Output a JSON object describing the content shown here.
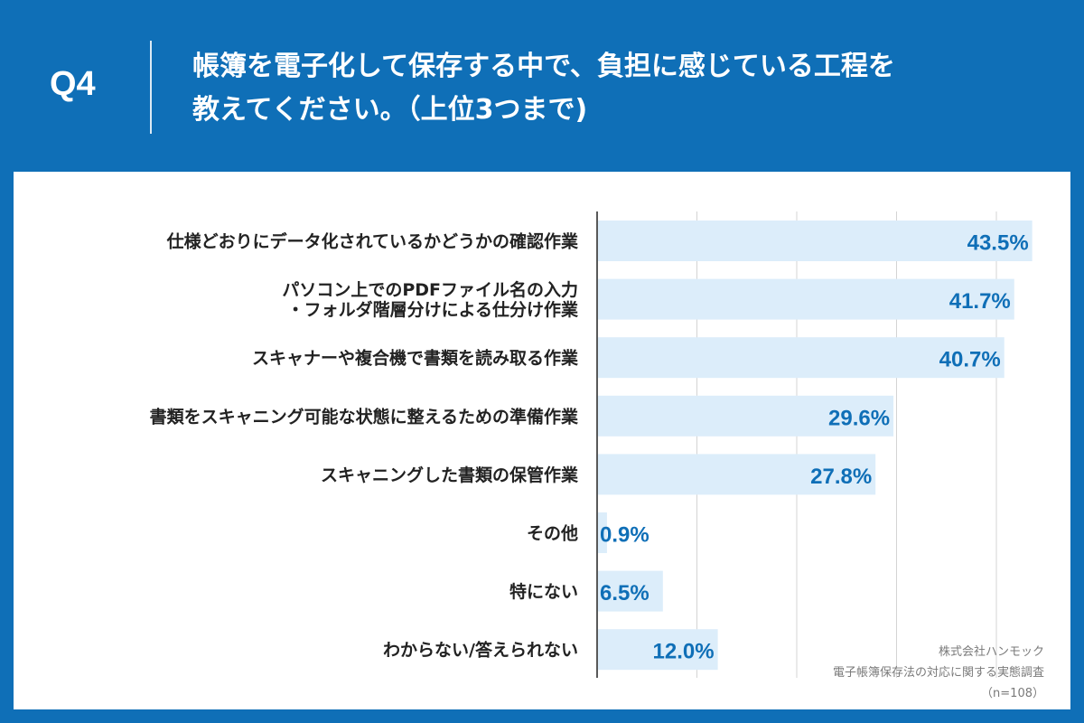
{
  "question": {
    "number": "Q4",
    "line1": "帳簿を電子化して保存する中で、負担に感じている工程を",
    "line2": "教えてください。（上位3つまで)"
  },
  "colors": {
    "header_bg": "#0f6fb7",
    "bar_fill": "#dcedfa",
    "value_text": "#0f6fb7",
    "label_text": "#222222",
    "grid": "#d4d4d4"
  },
  "chart_data": {
    "type": "bar",
    "orientation": "horizontal",
    "categories": [
      [
        "仕様どおりにデータ化されているかどうかの確認作業"
      ],
      [
        "パソコン上でのPDFファイル名の入力",
        "・フォルダ階層分けによる仕分け作業"
      ],
      [
        "スキャナーや複合機で書類を読み取る作業"
      ],
      [
        "書類をスキャニング可能な状態に整えるための準備作業"
      ],
      [
        "スキャニングした書類の保管作業"
      ],
      [
        "その他"
      ],
      [
        "特にない"
      ],
      [
        "わからない/答えられない"
      ]
    ],
    "values": [
      43.5,
      41.7,
      40.7,
      29.6,
      27.8,
      0.9,
      6.5,
      12.0
    ],
    "value_labels": [
      "43.5%",
      "41.7%",
      "40.7%",
      "29.6%",
      "27.8%",
      "0.9%",
      "6.5%",
      "12.0%"
    ],
    "xlim": [
      0,
      50
    ],
    "grid": true
  },
  "credits": {
    "company": "株式会社ハンモック",
    "survey": "電子帳簿保存法の対応に関する実態調査",
    "sample": "（n=108）"
  }
}
